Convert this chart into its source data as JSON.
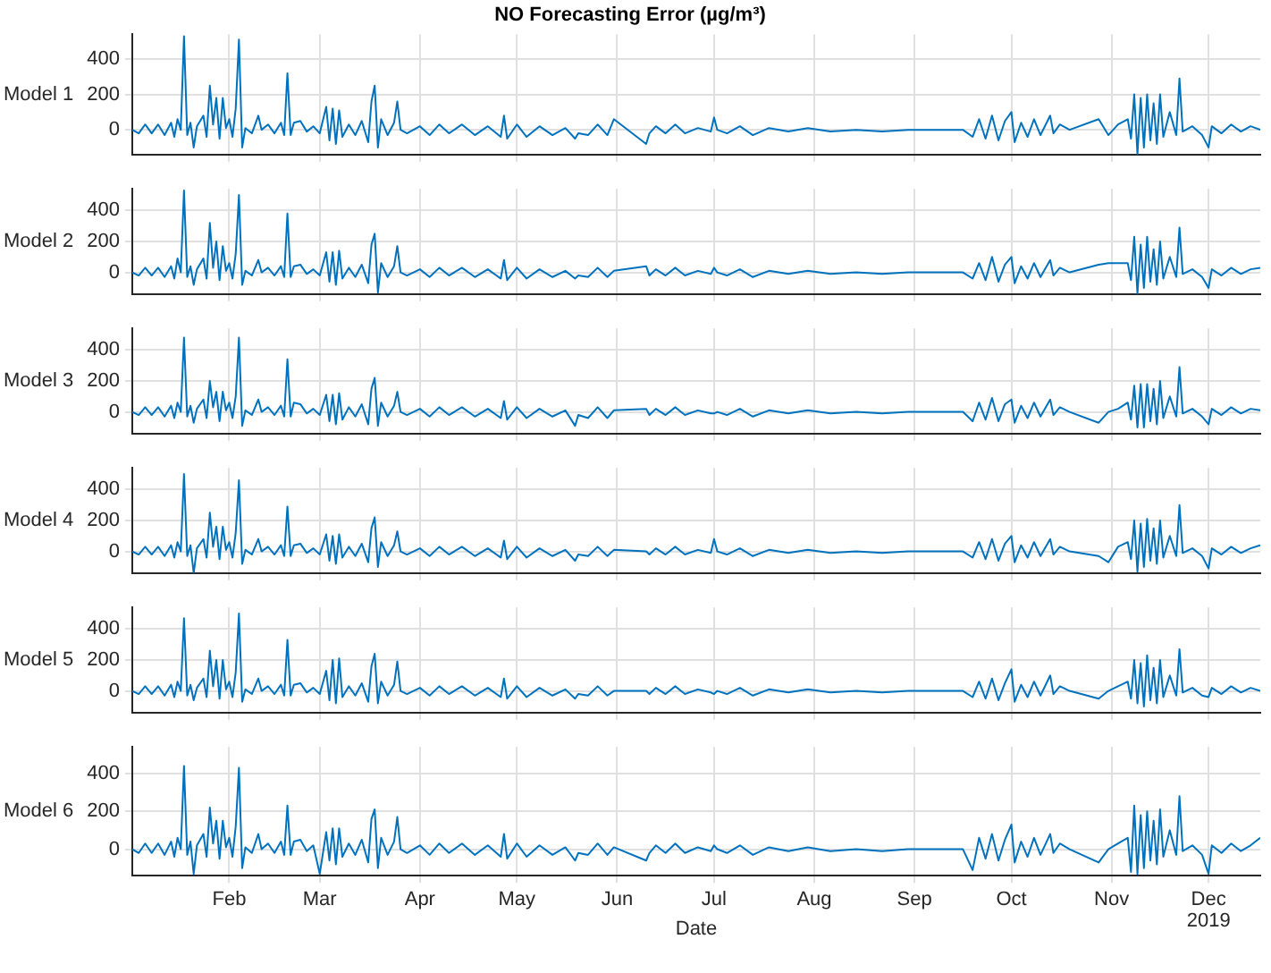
{
  "chart_data": [
    {
      "type": "line",
      "title": "NO Forecasting Error (µg/m³)",
      "ylabel": "Model 1",
      "color": "#0072bd",
      "tick_labels": "y",
      "grid": true,
      "x": [
        "2019-01-02",
        "2019-01-04",
        "2019-01-06",
        "2019-01-08",
        "2019-01-10",
        "2019-01-12",
        "2019-01-14",
        "2019-01-15",
        "2019-01-16",
        "2019-01-17",
        "2019-01-18",
        "2019-01-19",
        "2019-01-20",
        "2019-01-21",
        "2019-01-22",
        "2019-01-24",
        "2019-01-25",
        "2019-01-26",
        "2019-01-27",
        "2019-01-28",
        "2019-01-29",
        "2019-01-30",
        "2019-01-31",
        "2019-02-01",
        "2019-02-02",
        "2019-02-03",
        "2019-02-04",
        "2019-02-05",
        "2019-02-06",
        "2019-02-08",
        "2019-02-10",
        "2019-02-11",
        "2019-02-13",
        "2019-02-15",
        "2019-02-17",
        "2019-02-18",
        "2019-02-19",
        "2019-02-20",
        "2019-02-21",
        "2019-02-23",
        "2019-02-25",
        "2019-02-27",
        "2019-03-01",
        "2019-03-03",
        "2019-03-04",
        "2019-03-05",
        "2019-03-06",
        "2019-03-07",
        "2019-03-08",
        "2019-03-10",
        "2019-03-12",
        "2019-03-14",
        "2019-03-16",
        "2019-03-17",
        "2019-03-18",
        "2019-03-19",
        "2019-03-20",
        "2019-03-22",
        "2019-03-24",
        "2019-03-25",
        "2019-03-26",
        "2019-03-28",
        "2019-04-01",
        "2019-04-04",
        "2019-04-07",
        "2019-04-10",
        "2019-04-14",
        "2019-04-18",
        "2019-04-22",
        "2019-04-26",
        "2019-04-27",
        "2019-04-28",
        "2019-05-01",
        "2019-05-04",
        "2019-05-08",
        "2019-05-12",
        "2019-05-16",
        "2019-05-19",
        "2019-05-20",
        "2019-05-23",
        "2019-05-26",
        "2019-05-29",
        "2019-05-31",
        "2019-06-10",
        "2019-06-11",
        "2019-06-13",
        "2019-06-16",
        "2019-06-19",
        "2019-06-22",
        "2019-06-26",
        "2019-06-30",
        "2019-07-01",
        "2019-07-02",
        "2019-07-05",
        "2019-07-09",
        "2019-07-13",
        "2019-07-18",
        "2019-07-24",
        "2019-07-30",
        "2019-08-06",
        "2019-08-14",
        "2019-08-22",
        "2019-08-30",
        "2019-09-08",
        "2019-09-16",
        "2019-09-19",
        "2019-09-21",
        "2019-09-23",
        "2019-09-25",
        "2019-09-27",
        "2019-09-29",
        "2019-10-01",
        "2019-10-02",
        "2019-10-04",
        "2019-10-06",
        "2019-10-08",
        "2019-10-10",
        "2019-10-13",
        "2019-10-14",
        "2019-10-16",
        "2019-10-19",
        "2019-10-28",
        "2019-10-31",
        "2019-11-03",
        "2019-11-06",
        "2019-11-07",
        "2019-11-08",
        "2019-11-09",
        "2019-11-10",
        "2019-11-11",
        "2019-11-12",
        "2019-11-13",
        "2019-11-14",
        "2019-11-15",
        "2019-11-16",
        "2019-11-17",
        "2019-11-19",
        "2019-11-21",
        "2019-11-22",
        "2019-11-23",
        "2019-11-26",
        "2019-11-29",
        "2019-12-01",
        "2019-12-02",
        "2019-12-05",
        "2019-12-08",
        "2019-12-11",
        "2019-12-14",
        "2019-12-17"
      ],
      "values": [
        0,
        -20,
        30,
        -20,
        30,
        -30,
        40,
        -40,
        60,
        0,
        530,
        -30,
        40,
        -100,
        20,
        80,
        -40,
        250,
        30,
        180,
        -50,
        180,
        10,
        60,
        -40,
        120,
        510,
        -100,
        10,
        -20,
        80,
        0,
        30,
        -20,
        40,
        -30,
        320,
        -30,
        40,
        50,
        -10,
        20,
        -20,
        130,
        -60,
        120,
        -80,
        110,
        -40,
        30,
        -30,
        50,
        -70,
        160,
        250,
        -100,
        60,
        -30,
        40,
        160,
        0,
        -20,
        20,
        -30,
        30,
        -20,
        30,
        -30,
        20,
        -40,
        80,
        -50,
        30,
        -40,
        20,
        -30,
        10,
        -50,
        -20,
        -30,
        30,
        -30,
        60,
        -80,
        -20,
        20,
        -20,
        30,
        -20,
        10,
        -10,
        70,
        0,
        -20,
        20,
        -30,
        10,
        -10,
        10,
        -10,
        0,
        -10,
        0,
        0,
        0,
        -40,
        60,
        -50,
        80,
        -60,
        50,
        100,
        -70,
        40,
        -40,
        60,
        -30,
        80,
        -20,
        30,
        0,
        60,
        -30,
        30,
        60,
        -50,
        200,
        -140,
        180,
        -100,
        200,
        -60,
        150,
        -80,
        200,
        -40,
        100,
        -30,
        290,
        -10,
        20,
        -30,
        -100,
        20,
        -20,
        30,
        -10,
        20,
        0
      ],
      "xlim": [
        "2019-01-02",
        "2019-12-17"
      ],
      "ylim": [
        -140,
        540
      ],
      "yticks": [
        0,
        200,
        400
      ],
      "xticks": [
        {
          "value": "2019-02-01",
          "label": null
        },
        {
          "value": "2019-03-01",
          "label": null
        },
        {
          "value": "2019-04-01",
          "label": null
        },
        {
          "value": "2019-05-01",
          "label": null
        },
        {
          "value": "2019-06-01",
          "label": null
        },
        {
          "value": "2019-07-01",
          "label": null
        },
        {
          "value": "2019-08-01",
          "label": null
        },
        {
          "value": "2019-09-01",
          "label": null
        },
        {
          "value": "2019-10-01",
          "label": null
        },
        {
          "value": "2019-11-01",
          "label": null
        },
        {
          "value": "2019-12-01",
          "label": null
        }
      ]
    },
    {
      "type": "line",
      "ylabel": "Model 2",
      "color": "#0072bd",
      "tick_labels": "y",
      "grid": true,
      "x": [
        "2019-01-02",
        "2019-01-04",
        "2019-01-06",
        "2019-01-08",
        "2019-01-10",
        "2019-01-12",
        "2019-01-14",
        "2019-01-15",
        "2019-01-16",
        "2019-01-17",
        "2019-01-18",
        "2019-01-19",
        "2019-01-20",
        "2019-01-21",
        "2019-01-22",
        "2019-01-24",
        "2019-01-25",
        "2019-01-26",
        "2019-01-27",
        "2019-01-28",
        "2019-01-29",
        "2019-01-30",
        "2019-01-31",
        "2019-02-01",
        "2019-02-02",
        "2019-02-03",
        "2019-02-04",
        "2019-02-05",
        "2019-02-06",
        "2019-02-08",
        "2019-02-10",
        "2019-02-11",
        "2019-02-13",
        "2019-02-15",
        "2019-02-17",
        "2019-02-18",
        "2019-02-19",
        "2019-02-20",
        "2019-02-21",
        "2019-02-23",
        "2019-02-25",
        "2019-02-27",
        "2019-03-01",
        "2019-03-03",
        "2019-03-04",
        "2019-03-05",
        "2019-03-06",
        "2019-03-07",
        "2019-03-08",
        "2019-03-10",
        "2019-03-12",
        "2019-03-14",
        "2019-03-16",
        "2019-03-17",
        "2019-03-18",
        "2019-03-19",
        "2019-03-20",
        "2019-03-22",
        "2019-03-24",
        "2019-03-25",
        "2019-03-26",
        "2019-03-28",
        "2019-04-01",
        "2019-04-04",
        "2019-04-07",
        "2019-04-10",
        "2019-04-14",
        "2019-04-18",
        "2019-04-22",
        "2019-04-26",
        "2019-04-27",
        "2019-04-28",
        "2019-05-01",
        "2019-05-04",
        "2019-05-08",
        "2019-05-12",
        "2019-05-16",
        "2019-05-19",
        "2019-05-20",
        "2019-05-23",
        "2019-05-26",
        "2019-05-29",
        "2019-05-31",
        "2019-06-10",
        "2019-06-11",
        "2019-06-13",
        "2019-06-16",
        "2019-06-19",
        "2019-06-22",
        "2019-06-26",
        "2019-06-30",
        "2019-07-01",
        "2019-07-02",
        "2019-07-05",
        "2019-07-09",
        "2019-07-13",
        "2019-07-18",
        "2019-07-24",
        "2019-07-30",
        "2019-08-06",
        "2019-08-14",
        "2019-08-22",
        "2019-08-30",
        "2019-09-08",
        "2019-09-16",
        "2019-09-19",
        "2019-09-21",
        "2019-09-23",
        "2019-09-25",
        "2019-09-27",
        "2019-09-29",
        "2019-10-01",
        "2019-10-02",
        "2019-10-04",
        "2019-10-06",
        "2019-10-08",
        "2019-10-10",
        "2019-10-13",
        "2019-10-14",
        "2019-10-16",
        "2019-10-19",
        "2019-10-28",
        "2019-10-31",
        "2019-11-03",
        "2019-11-06",
        "2019-11-07",
        "2019-11-08",
        "2019-11-09",
        "2019-11-10",
        "2019-11-11",
        "2019-11-12",
        "2019-11-13",
        "2019-11-14",
        "2019-11-15",
        "2019-11-16",
        "2019-11-17",
        "2019-11-19",
        "2019-11-21",
        "2019-11-22",
        "2019-11-23",
        "2019-11-26",
        "2019-11-29",
        "2019-12-01",
        "2019-12-02",
        "2019-12-05",
        "2019-12-08",
        "2019-12-11",
        "2019-12-14",
        "2019-12-17"
      ],
      "values": [
        0,
        -20,
        30,
        -20,
        30,
        -30,
        40,
        -40,
        90,
        0,
        530,
        -30,
        40,
        -80,
        20,
        90,
        -40,
        320,
        30,
        200,
        -50,
        170,
        10,
        60,
        -40,
        120,
        500,
        -80,
        10,
        -20,
        80,
        0,
        30,
        -20,
        40,
        -30,
        380,
        -30,
        40,
        50,
        -10,
        20,
        -20,
        130,
        -60,
        130,
        -80,
        140,
        -40,
        30,
        -30,
        50,
        -70,
        180,
        250,
        -130,
        60,
        -30,
        40,
        170,
        0,
        -20,
        20,
        -30,
        30,
        -20,
        30,
        -30,
        20,
        -40,
        80,
        -50,
        30,
        -40,
        20,
        -30,
        10,
        -40,
        -20,
        -30,
        30,
        -30,
        10,
        40,
        -20,
        20,
        -20,
        30,
        -20,
        10,
        -10,
        30,
        0,
        -20,
        20,
        -30,
        10,
        -10,
        10,
        -10,
        0,
        -10,
        0,
        0,
        0,
        -40,
        60,
        -50,
        100,
        -60,
        50,
        100,
        -70,
        40,
        -40,
        60,
        -30,
        80,
        -20,
        30,
        0,
        50,
        60,
        60,
        60,
        -50,
        230,
        -140,
        180,
        -100,
        230,
        -60,
        150,
        -80,
        200,
        -40,
        100,
        -30,
        290,
        -10,
        20,
        -30,
        -100,
        20,
        -20,
        30,
        -10,
        20,
        30
      ],
      "xlim": [
        "2019-01-02",
        "2019-12-17"
      ],
      "ylim": [
        -140,
        540
      ],
      "yticks": [
        0,
        200,
        400
      ],
      "xticks": [
        {
          "value": "2019-02-01",
          "label": null
        },
        {
          "value": "2019-03-01",
          "label": null
        },
        {
          "value": "2019-04-01",
          "label": null
        },
        {
          "value": "2019-05-01",
          "label": null
        },
        {
          "value": "2019-06-01",
          "label": null
        },
        {
          "value": "2019-07-01",
          "label": null
        },
        {
          "value": "2019-08-01",
          "label": null
        },
        {
          "value": "2019-09-01",
          "label": null
        },
        {
          "value": "2019-10-01",
          "label": null
        },
        {
          "value": "2019-11-01",
          "label": null
        },
        {
          "value": "2019-12-01",
          "label": null
        }
      ]
    },
    {
      "type": "line",
      "ylabel": "Model 3",
      "color": "#0072bd",
      "tick_labels": "y",
      "grid": true,
      "x": [
        "2019-01-02",
        "2019-01-04",
        "2019-01-06",
        "2019-01-08",
        "2019-01-10",
        "2019-01-12",
        "2019-01-14",
        "2019-01-15",
        "2019-01-16",
        "2019-01-17",
        "2019-01-18",
        "2019-01-19",
        "2019-01-20",
        "2019-01-21",
        "2019-01-22",
        "2019-01-24",
        "2019-01-25",
        "2019-01-26",
        "2019-01-27",
        "2019-01-28",
        "2019-01-29",
        "2019-01-30",
        "2019-01-31",
        "2019-02-01",
        "2019-02-02",
        "2019-02-03",
        "2019-02-04",
        "2019-02-05",
        "2019-02-06",
        "2019-02-08",
        "2019-02-10",
        "2019-02-11",
        "2019-02-13",
        "2019-02-15",
        "2019-02-17",
        "2019-02-18",
        "2019-02-19",
        "2019-02-20",
        "2019-02-21",
        "2019-02-23",
        "2019-02-25",
        "2019-02-27",
        "2019-03-01",
        "2019-03-03",
        "2019-03-04",
        "2019-03-05",
        "2019-03-06",
        "2019-03-07",
        "2019-03-08",
        "2019-03-10",
        "2019-03-12",
        "2019-03-14",
        "2019-03-16",
        "2019-03-17",
        "2019-03-18",
        "2019-03-19",
        "2019-03-20",
        "2019-03-22",
        "2019-03-24",
        "2019-03-25",
        "2019-03-26",
        "2019-03-28",
        "2019-04-01",
        "2019-04-04",
        "2019-04-07",
        "2019-04-10",
        "2019-04-14",
        "2019-04-18",
        "2019-04-22",
        "2019-04-26",
        "2019-04-27",
        "2019-04-28",
        "2019-05-01",
        "2019-05-04",
        "2019-05-08",
        "2019-05-12",
        "2019-05-16",
        "2019-05-19",
        "2019-05-20",
        "2019-05-23",
        "2019-05-26",
        "2019-05-29",
        "2019-05-31",
        "2019-06-10",
        "2019-06-11",
        "2019-06-13",
        "2019-06-16",
        "2019-06-19",
        "2019-06-22",
        "2019-06-26",
        "2019-06-30",
        "2019-07-01",
        "2019-07-02",
        "2019-07-05",
        "2019-07-09",
        "2019-07-13",
        "2019-07-18",
        "2019-07-24",
        "2019-07-30",
        "2019-08-06",
        "2019-08-14",
        "2019-08-22",
        "2019-08-30",
        "2019-09-08",
        "2019-09-16",
        "2019-09-19",
        "2019-09-21",
        "2019-09-23",
        "2019-09-25",
        "2019-09-27",
        "2019-09-29",
        "2019-10-01",
        "2019-10-02",
        "2019-10-04",
        "2019-10-06",
        "2019-10-08",
        "2019-10-10",
        "2019-10-13",
        "2019-10-14",
        "2019-10-16",
        "2019-10-19",
        "2019-10-28",
        "2019-10-31",
        "2019-11-03",
        "2019-11-06",
        "2019-11-07",
        "2019-11-08",
        "2019-11-09",
        "2019-11-10",
        "2019-11-11",
        "2019-11-12",
        "2019-11-13",
        "2019-11-14",
        "2019-11-15",
        "2019-11-16",
        "2019-11-17",
        "2019-11-19",
        "2019-11-21",
        "2019-11-22",
        "2019-11-23",
        "2019-11-26",
        "2019-11-29",
        "2019-12-01",
        "2019-12-02",
        "2019-12-05",
        "2019-12-08",
        "2019-12-11",
        "2019-12-14",
        "2019-12-17"
      ],
      "values": [
        0,
        -20,
        30,
        -20,
        30,
        -30,
        40,
        -40,
        60,
        0,
        480,
        -30,
        40,
        -70,
        20,
        80,
        -40,
        200,
        30,
        130,
        -60,
        130,
        10,
        60,
        -40,
        100,
        480,
        -90,
        10,
        -20,
        80,
        0,
        30,
        -20,
        40,
        -30,
        340,
        -30,
        60,
        50,
        -10,
        20,
        -20,
        110,
        -60,
        110,
        -80,
        120,
        -50,
        30,
        -30,
        50,
        -80,
        150,
        220,
        -90,
        60,
        -30,
        40,
        130,
        0,
        -20,
        20,
        -30,
        30,
        -20,
        30,
        -30,
        20,
        -40,
        70,
        -50,
        30,
        -40,
        20,
        -30,
        10,
        -90,
        -20,
        -40,
        30,
        -40,
        10,
        20,
        -20,
        20,
        -20,
        30,
        -20,
        10,
        -10,
        -10,
        0,
        -20,
        20,
        -30,
        10,
        -10,
        10,
        -10,
        0,
        -10,
        0,
        0,
        0,
        -60,
        60,
        -50,
        90,
        -60,
        50,
        80,
        -70,
        40,
        -40,
        60,
        -30,
        80,
        -20,
        30,
        0,
        -70,
        0,
        20,
        60,
        -50,
        170,
        -100,
        180,
        -100,
        180,
        -60,
        150,
        -80,
        200,
        -40,
        100,
        -30,
        290,
        -10,
        20,
        -30,
        -80,
        20,
        -20,
        30,
        -10,
        20,
        10
      ],
      "xlim": [
        "2019-01-02",
        "2019-12-17"
      ],
      "ylim": [
        -140,
        540
      ],
      "yticks": [
        0,
        200,
        400
      ],
      "xticks": [
        {
          "value": "2019-02-01",
          "label": null
        },
        {
          "value": "2019-03-01",
          "label": null
        },
        {
          "value": "2019-04-01",
          "label": null
        },
        {
          "value": "2019-05-01",
          "label": null
        },
        {
          "value": "2019-06-01",
          "label": null
        },
        {
          "value": "2019-07-01",
          "label": null
        },
        {
          "value": "2019-08-01",
          "label": null
        },
        {
          "value": "2019-09-01",
          "label": null
        },
        {
          "value": "2019-10-01",
          "label": null
        },
        {
          "value": "2019-11-01",
          "label": null
        },
        {
          "value": "2019-12-01",
          "label": null
        }
      ]
    },
    {
      "type": "line",
      "ylabel": "Model 4",
      "color": "#0072bd",
      "tick_labels": "y",
      "grid": true,
      "x": [
        "2019-01-02",
        "2019-01-04",
        "2019-01-06",
        "2019-01-08",
        "2019-01-10",
        "2019-01-12",
        "2019-01-14",
        "2019-01-15",
        "2019-01-16",
        "2019-01-17",
        "2019-01-18",
        "2019-01-19",
        "2019-01-20",
        "2019-01-21",
        "2019-01-22",
        "2019-01-24",
        "2019-01-25",
        "2019-01-26",
        "2019-01-27",
        "2019-01-28",
        "2019-01-29",
        "2019-01-30",
        "2019-01-31",
        "2019-02-01",
        "2019-02-02",
        "2019-02-03",
        "2019-02-04",
        "2019-02-05",
        "2019-02-06",
        "2019-02-08",
        "2019-02-10",
        "2019-02-11",
        "2019-02-13",
        "2019-02-15",
        "2019-02-17",
        "2019-02-18",
        "2019-02-19",
        "2019-02-20",
        "2019-02-21",
        "2019-02-23",
        "2019-02-25",
        "2019-02-27",
        "2019-03-01",
        "2019-03-03",
        "2019-03-04",
        "2019-03-05",
        "2019-03-06",
        "2019-03-07",
        "2019-03-08",
        "2019-03-10",
        "2019-03-12",
        "2019-03-14",
        "2019-03-16",
        "2019-03-17",
        "2019-03-18",
        "2019-03-19",
        "2019-03-20",
        "2019-03-22",
        "2019-03-24",
        "2019-03-25",
        "2019-03-26",
        "2019-03-28",
        "2019-04-01",
        "2019-04-04",
        "2019-04-07",
        "2019-04-10",
        "2019-04-14",
        "2019-04-18",
        "2019-04-22",
        "2019-04-26",
        "2019-04-27",
        "2019-04-28",
        "2019-05-01",
        "2019-05-04",
        "2019-05-08",
        "2019-05-12",
        "2019-05-16",
        "2019-05-19",
        "2019-05-20",
        "2019-05-23",
        "2019-05-26",
        "2019-05-29",
        "2019-05-31",
        "2019-06-10",
        "2019-06-11",
        "2019-06-13",
        "2019-06-16",
        "2019-06-19",
        "2019-06-22",
        "2019-06-26",
        "2019-06-30",
        "2019-07-01",
        "2019-07-02",
        "2019-07-05",
        "2019-07-09",
        "2019-07-13",
        "2019-07-18",
        "2019-07-24",
        "2019-07-30",
        "2019-08-06",
        "2019-08-14",
        "2019-08-22",
        "2019-08-30",
        "2019-09-08",
        "2019-09-16",
        "2019-09-19",
        "2019-09-21",
        "2019-09-23",
        "2019-09-25",
        "2019-09-27",
        "2019-09-29",
        "2019-10-01",
        "2019-10-02",
        "2019-10-04",
        "2019-10-06",
        "2019-10-08",
        "2019-10-10",
        "2019-10-13",
        "2019-10-14",
        "2019-10-16",
        "2019-10-19",
        "2019-10-28",
        "2019-10-31",
        "2019-11-03",
        "2019-11-06",
        "2019-11-07",
        "2019-11-08",
        "2019-11-09",
        "2019-11-10",
        "2019-11-11",
        "2019-11-12",
        "2019-11-13",
        "2019-11-14",
        "2019-11-15",
        "2019-11-16",
        "2019-11-17",
        "2019-11-19",
        "2019-11-21",
        "2019-11-22",
        "2019-11-23",
        "2019-11-26",
        "2019-11-29",
        "2019-12-01",
        "2019-12-02",
        "2019-12-05",
        "2019-12-08",
        "2019-12-11",
        "2019-12-14",
        "2019-12-17"
      ],
      "values": [
        0,
        -20,
        30,
        -20,
        30,
        -30,
        40,
        -40,
        60,
        0,
        500,
        -30,
        40,
        -140,
        20,
        80,
        -40,
        250,
        30,
        160,
        -50,
        160,
        10,
        60,
        -40,
        120,
        460,
        -80,
        10,
        -20,
        80,
        0,
        30,
        -20,
        40,
        -30,
        290,
        -30,
        40,
        50,
        -10,
        20,
        -20,
        110,
        -60,
        100,
        -80,
        110,
        -40,
        30,
        -30,
        50,
        -70,
        150,
        220,
        -100,
        60,
        -30,
        40,
        130,
        0,
        -20,
        20,
        -30,
        30,
        -20,
        30,
        -30,
        20,
        -40,
        70,
        -50,
        30,
        -40,
        20,
        -30,
        10,
        -60,
        -20,
        -30,
        30,
        -30,
        10,
        0,
        -20,
        20,
        -20,
        30,
        -20,
        10,
        -10,
        80,
        0,
        -20,
        20,
        -30,
        10,
        -10,
        10,
        -10,
        0,
        -10,
        0,
        0,
        0,
        -40,
        60,
        -50,
        80,
        -60,
        50,
        100,
        -70,
        40,
        -40,
        60,
        -30,
        80,
        -20,
        30,
        0,
        -30,
        -70,
        30,
        60,
        -50,
        200,
        -130,
        180,
        -100,
        210,
        -60,
        150,
        -80,
        200,
        -40,
        100,
        -30,
        300,
        -10,
        20,
        -30,
        -110,
        20,
        -20,
        30,
        -10,
        20,
        40
      ],
      "xlim": [
        "2019-01-02",
        "2019-12-17"
      ],
      "ylim": [
        -140,
        540
      ],
      "yticks": [
        0,
        200,
        400
      ],
      "xticks": [
        {
          "value": "2019-02-01",
          "label": null
        },
        {
          "value": "2019-03-01",
          "label": null
        },
        {
          "value": "2019-04-01",
          "label": null
        },
        {
          "value": "2019-05-01",
          "label": null
        },
        {
          "value": "2019-06-01",
          "label": null
        },
        {
          "value": "2019-07-01",
          "label": null
        },
        {
          "value": "2019-08-01",
          "label": null
        },
        {
          "value": "2019-09-01",
          "label": null
        },
        {
          "value": "2019-10-01",
          "label": null
        },
        {
          "value": "2019-11-01",
          "label": null
        },
        {
          "value": "2019-12-01",
          "label": null
        }
      ]
    },
    {
      "type": "line",
      "ylabel": "Model 5",
      "color": "#0072bd",
      "tick_labels": "y",
      "grid": true,
      "x": [
        "2019-01-02",
        "2019-01-04",
        "2019-01-06",
        "2019-01-08",
        "2019-01-10",
        "2019-01-12",
        "2019-01-14",
        "2019-01-15",
        "2019-01-16",
        "2019-01-17",
        "2019-01-18",
        "2019-01-19",
        "2019-01-20",
        "2019-01-21",
        "2019-01-22",
        "2019-01-24",
        "2019-01-25",
        "2019-01-26",
        "2019-01-27",
        "2019-01-28",
        "2019-01-29",
        "2019-01-30",
        "2019-01-31",
        "2019-02-01",
        "2019-02-02",
        "2019-02-03",
        "2019-02-04",
        "2019-02-05",
        "2019-02-06",
        "2019-02-08",
        "2019-02-10",
        "2019-02-11",
        "2019-02-13",
        "2019-02-15",
        "2019-02-17",
        "2019-02-18",
        "2019-02-19",
        "2019-02-20",
        "2019-02-21",
        "2019-02-23",
        "2019-02-25",
        "2019-02-27",
        "2019-03-01",
        "2019-03-03",
        "2019-03-04",
        "2019-03-05",
        "2019-03-06",
        "2019-03-07",
        "2019-03-08",
        "2019-03-10",
        "2019-03-12",
        "2019-03-14",
        "2019-03-16",
        "2019-03-17",
        "2019-03-18",
        "2019-03-19",
        "2019-03-20",
        "2019-03-22",
        "2019-03-24",
        "2019-03-25",
        "2019-03-26",
        "2019-03-28",
        "2019-04-01",
        "2019-04-04",
        "2019-04-07",
        "2019-04-10",
        "2019-04-14",
        "2019-04-18",
        "2019-04-22",
        "2019-04-26",
        "2019-04-27",
        "2019-04-28",
        "2019-05-01",
        "2019-05-04",
        "2019-05-08",
        "2019-05-12",
        "2019-05-16",
        "2019-05-19",
        "2019-05-20",
        "2019-05-23",
        "2019-05-26",
        "2019-05-29",
        "2019-05-31",
        "2019-06-10",
        "2019-06-11",
        "2019-06-13",
        "2019-06-16",
        "2019-06-19",
        "2019-06-22",
        "2019-06-26",
        "2019-06-30",
        "2019-07-01",
        "2019-07-02",
        "2019-07-05",
        "2019-07-09",
        "2019-07-13",
        "2019-07-18",
        "2019-07-24",
        "2019-07-30",
        "2019-08-06",
        "2019-08-14",
        "2019-08-22",
        "2019-08-30",
        "2019-09-08",
        "2019-09-16",
        "2019-09-19",
        "2019-09-21",
        "2019-09-23",
        "2019-09-25",
        "2019-09-27",
        "2019-09-29",
        "2019-10-01",
        "2019-10-02",
        "2019-10-04",
        "2019-10-06",
        "2019-10-08",
        "2019-10-10",
        "2019-10-13",
        "2019-10-14",
        "2019-10-16",
        "2019-10-19",
        "2019-10-28",
        "2019-10-31",
        "2019-11-03",
        "2019-11-06",
        "2019-11-07",
        "2019-11-08",
        "2019-11-09",
        "2019-11-10",
        "2019-11-11",
        "2019-11-12",
        "2019-11-13",
        "2019-11-14",
        "2019-11-15",
        "2019-11-16",
        "2019-11-17",
        "2019-11-19",
        "2019-11-21",
        "2019-11-22",
        "2019-11-23",
        "2019-11-26",
        "2019-11-29",
        "2019-12-01",
        "2019-12-02",
        "2019-12-05",
        "2019-12-08",
        "2019-12-11",
        "2019-12-14",
        "2019-12-17"
      ],
      "values": [
        0,
        -20,
        30,
        -20,
        30,
        -30,
        40,
        -40,
        60,
        0,
        470,
        -30,
        40,
        -60,
        20,
        80,
        -40,
        260,
        30,
        200,
        -50,
        200,
        10,
        60,
        -40,
        120,
        500,
        -70,
        10,
        -20,
        80,
        0,
        30,
        -20,
        40,
        -30,
        330,
        -30,
        40,
        50,
        -10,
        20,
        -20,
        130,
        -60,
        200,
        -80,
        210,
        -40,
        30,
        -30,
        50,
        -70,
        160,
        240,
        -80,
        60,
        -30,
        40,
        190,
        0,
        -20,
        20,
        -30,
        30,
        -20,
        30,
        -30,
        20,
        -40,
        80,
        -50,
        30,
        -40,
        20,
        -30,
        10,
        -50,
        -20,
        -30,
        30,
        -30,
        0,
        0,
        -20,
        20,
        -20,
        30,
        -20,
        10,
        -10,
        -20,
        0,
        -20,
        20,
        -30,
        10,
        -10,
        10,
        -10,
        0,
        -10,
        0,
        0,
        0,
        -40,
        60,
        -50,
        80,
        -60,
        50,
        140,
        -70,
        40,
        -40,
        60,
        -30,
        100,
        -20,
        30,
        0,
        -50,
        0,
        30,
        60,
        -50,
        200,
        -80,
        180,
        -100,
        230,
        -60,
        150,
        -80,
        200,
        -40,
        100,
        -30,
        270,
        -10,
        20,
        -30,
        -40,
        20,
        -20,
        30,
        -10,
        20,
        0
      ],
      "xlim": [
        "2019-01-02",
        "2019-12-17"
      ],
      "ylim": [
        -140,
        540
      ],
      "yticks": [
        0,
        200,
        400
      ],
      "xticks": [
        {
          "value": "2019-02-01",
          "label": null
        },
        {
          "value": "2019-03-01",
          "label": null
        },
        {
          "value": "2019-04-01",
          "label": null
        },
        {
          "value": "2019-05-01",
          "label": null
        },
        {
          "value": "2019-06-01",
          "label": null
        },
        {
          "value": "2019-07-01",
          "label": null
        },
        {
          "value": "2019-08-01",
          "label": null
        },
        {
          "value": "2019-09-01",
          "label": null
        },
        {
          "value": "2019-10-01",
          "label": null
        },
        {
          "value": "2019-11-01",
          "label": null
        },
        {
          "value": "2019-12-01",
          "label": null
        }
      ]
    },
    {
      "type": "line",
      "ylabel": "Model 6",
      "xlabel": "Date",
      "annotations": [
        "2019"
      ],
      "color": "#0072bd",
      "grid": true,
      "x": [
        "2019-01-02",
        "2019-01-04",
        "2019-01-06",
        "2019-01-08",
        "2019-01-10",
        "2019-01-12",
        "2019-01-14",
        "2019-01-15",
        "2019-01-16",
        "2019-01-17",
        "2019-01-18",
        "2019-01-19",
        "2019-01-20",
        "2019-01-21",
        "2019-01-22",
        "2019-01-24",
        "2019-01-25",
        "2019-01-26",
        "2019-01-27",
        "2019-01-28",
        "2019-01-29",
        "2019-01-30",
        "2019-01-31",
        "2019-02-01",
        "2019-02-02",
        "2019-02-03",
        "2019-02-04",
        "2019-02-05",
        "2019-02-06",
        "2019-02-08",
        "2019-02-10",
        "2019-02-11",
        "2019-02-13",
        "2019-02-15",
        "2019-02-17",
        "2019-02-18",
        "2019-02-19",
        "2019-02-20",
        "2019-02-21",
        "2019-02-23",
        "2019-02-25",
        "2019-02-27",
        "2019-03-01",
        "2019-03-03",
        "2019-03-04",
        "2019-03-05",
        "2019-03-06",
        "2019-03-07",
        "2019-03-08",
        "2019-03-10",
        "2019-03-12",
        "2019-03-14",
        "2019-03-16",
        "2019-03-17",
        "2019-03-18",
        "2019-03-19",
        "2019-03-20",
        "2019-03-22",
        "2019-03-24",
        "2019-03-25",
        "2019-03-26",
        "2019-03-28",
        "2019-04-01",
        "2019-04-04",
        "2019-04-07",
        "2019-04-10",
        "2019-04-14",
        "2019-04-18",
        "2019-04-22",
        "2019-04-26",
        "2019-04-27",
        "2019-04-28",
        "2019-05-01",
        "2019-05-04",
        "2019-05-08",
        "2019-05-12",
        "2019-05-16",
        "2019-05-19",
        "2019-05-20",
        "2019-05-23",
        "2019-05-26",
        "2019-05-29",
        "2019-05-31",
        "2019-06-10",
        "2019-06-11",
        "2019-06-13",
        "2019-06-16",
        "2019-06-19",
        "2019-06-22",
        "2019-06-26",
        "2019-06-30",
        "2019-07-01",
        "2019-07-02",
        "2019-07-05",
        "2019-07-09",
        "2019-07-13",
        "2019-07-18",
        "2019-07-24",
        "2019-07-30",
        "2019-08-06",
        "2019-08-14",
        "2019-08-22",
        "2019-08-30",
        "2019-09-08",
        "2019-09-16",
        "2019-09-19",
        "2019-09-21",
        "2019-09-23",
        "2019-09-25",
        "2019-09-27",
        "2019-09-29",
        "2019-10-01",
        "2019-10-02",
        "2019-10-04",
        "2019-10-06",
        "2019-10-08",
        "2019-10-10",
        "2019-10-13",
        "2019-10-14",
        "2019-10-16",
        "2019-10-19",
        "2019-10-28",
        "2019-10-31",
        "2019-11-03",
        "2019-11-06",
        "2019-11-07",
        "2019-11-08",
        "2019-11-09",
        "2019-11-10",
        "2019-11-11",
        "2019-11-12",
        "2019-11-13",
        "2019-11-14",
        "2019-11-15",
        "2019-11-16",
        "2019-11-17",
        "2019-11-19",
        "2019-11-21",
        "2019-11-22",
        "2019-11-23",
        "2019-11-26",
        "2019-11-29",
        "2019-12-01",
        "2019-12-02",
        "2019-12-05",
        "2019-12-08",
        "2019-12-11",
        "2019-12-14",
        "2019-12-17"
      ],
      "values": [
        0,
        -20,
        30,
        -20,
        30,
        -30,
        40,
        -40,
        60,
        0,
        440,
        -30,
        40,
        -130,
        20,
        80,
        -40,
        220,
        30,
        150,
        -50,
        150,
        10,
        60,
        -40,
        120,
        430,
        -100,
        10,
        -20,
        80,
        0,
        30,
        -20,
        40,
        -30,
        230,
        -30,
        40,
        50,
        -10,
        20,
        -130,
        90,
        -60,
        110,
        -80,
        110,
        -40,
        30,
        -30,
        50,
        -70,
        160,
        210,
        -100,
        60,
        -30,
        40,
        170,
        0,
        -20,
        20,
        -30,
        30,
        -20,
        30,
        -30,
        20,
        -40,
        80,
        -50,
        30,
        -40,
        20,
        -30,
        10,
        -60,
        -20,
        -30,
        30,
        -30,
        10,
        -60,
        -20,
        20,
        -20,
        30,
        -20,
        10,
        -10,
        20,
        0,
        -20,
        20,
        -30,
        10,
        -10,
        10,
        -10,
        0,
        -10,
        0,
        0,
        0,
        -110,
        60,
        -50,
        80,
        -60,
        50,
        130,
        -70,
        40,
        -40,
        60,
        -30,
        80,
        -20,
        30,
        0,
        -70,
        0,
        30,
        60,
        -120,
        230,
        -130,
        180,
        -100,
        200,
        -60,
        150,
        -80,
        210,
        -40,
        100,
        -30,
        280,
        -10,
        20,
        -30,
        -130,
        20,
        -20,
        30,
        -10,
        20,
        60
      ],
      "xlim": [
        "2019-01-02",
        "2019-12-17"
      ],
      "ylim": [
        -140,
        540
      ],
      "yticks": [
        0,
        200,
        400
      ],
      "xticks": [
        {
          "value": "2019-02-01",
          "label": "Feb"
        },
        {
          "value": "2019-03-01",
          "label": "Mar"
        },
        {
          "value": "2019-04-01",
          "label": "Apr"
        },
        {
          "value": "2019-05-01",
          "label": "May"
        },
        {
          "value": "2019-06-01",
          "label": "Jun"
        },
        {
          "value": "2019-07-01",
          "label": "Jul"
        },
        {
          "value": "2019-08-01",
          "label": "Aug"
        },
        {
          "value": "2019-09-01",
          "label": "Sep"
        },
        {
          "value": "2019-10-01",
          "label": "Oct"
        },
        {
          "value": "2019-11-01",
          "label": "Nov"
        },
        {
          "value": "2019-12-01",
          "label": "Dec"
        }
      ]
    }
  ]
}
